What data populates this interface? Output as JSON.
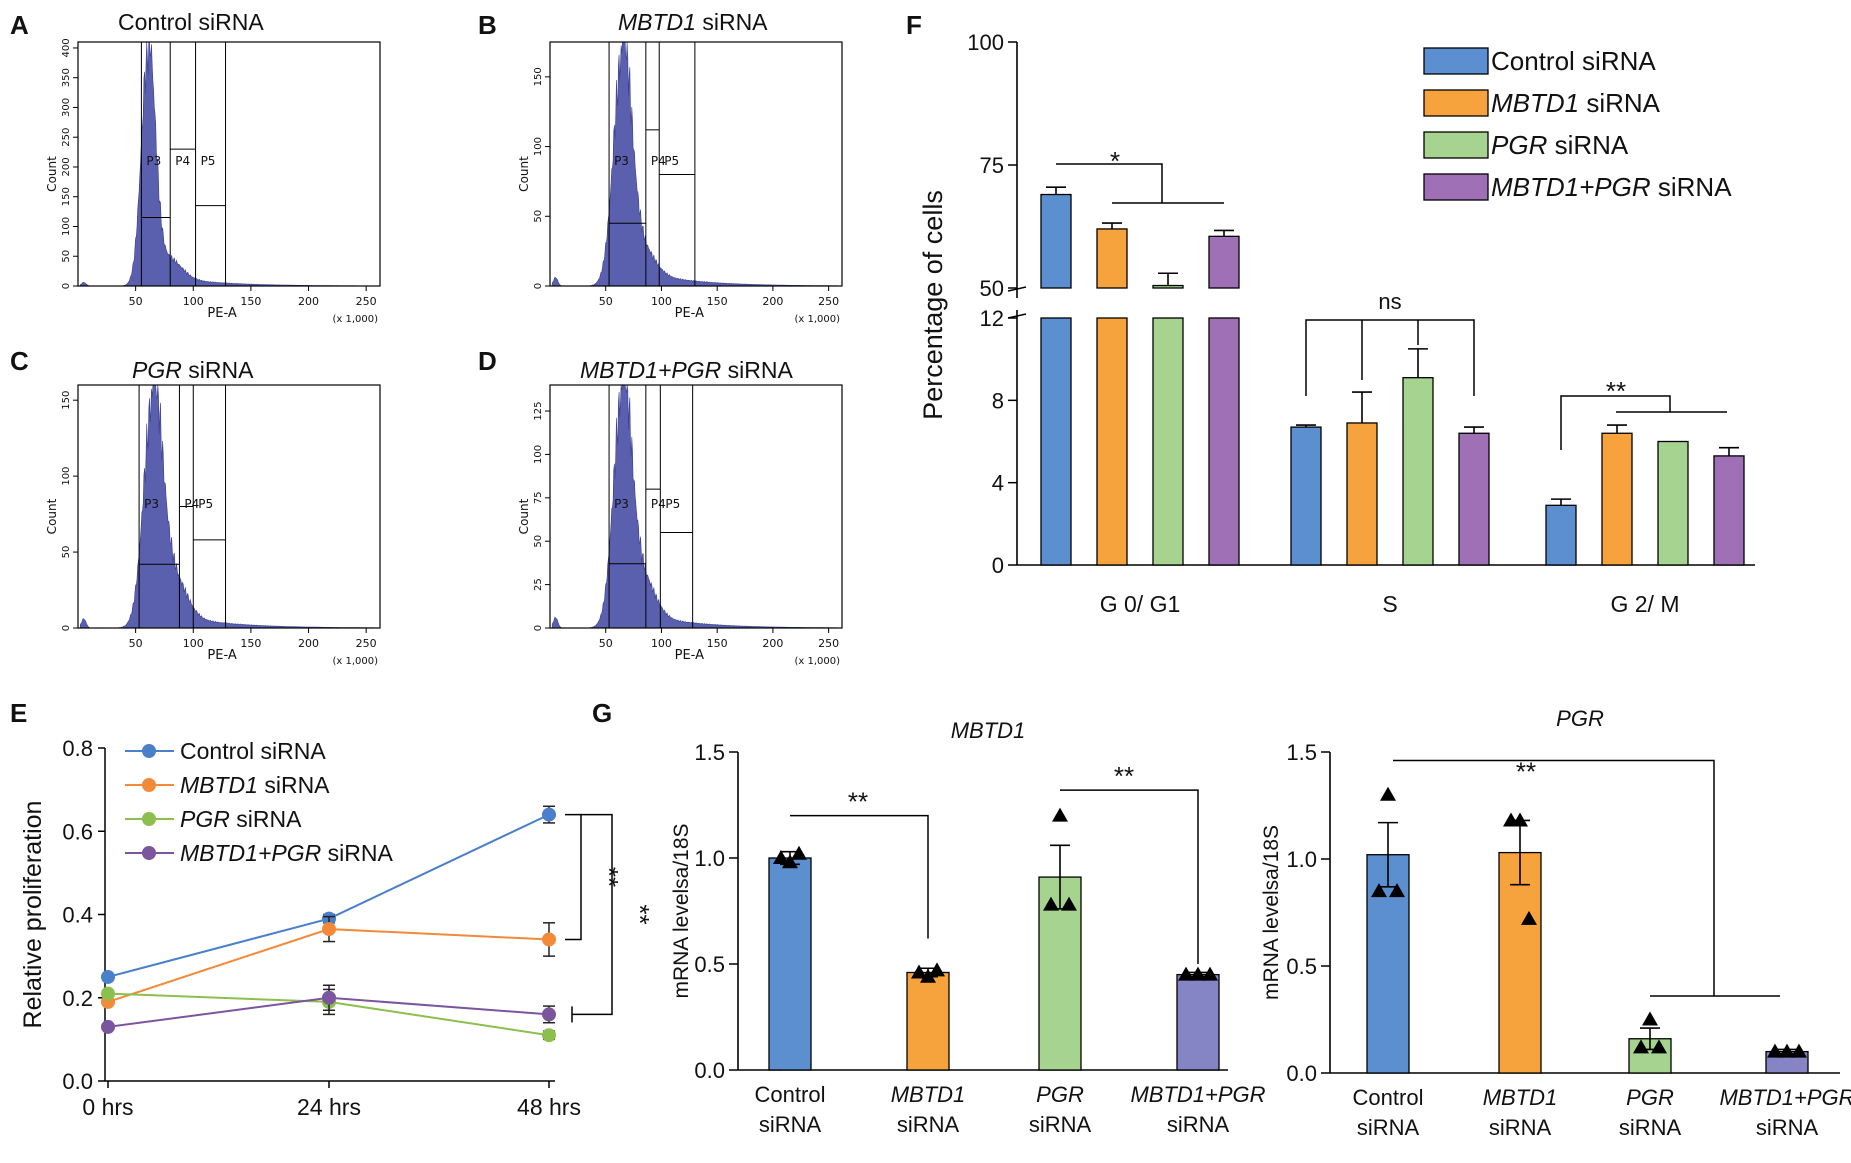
{
  "panels": {
    "A": {
      "letter": "A",
      "title": "Control siRNA"
    },
    "B": {
      "letter": "B",
      "title_italic": "MBTD1",
      "title_rest": " siRNA"
    },
    "C": {
      "letter": "C",
      "title_italic": "PGR",
      "title_rest": " siRNA"
    },
    "D": {
      "letter": "D",
      "title_italic": "MBTD1+PGR",
      "title_rest": " siRNA"
    },
    "E": {
      "letter": "E"
    },
    "F": {
      "letter": "F"
    },
    "G": {
      "letter": "G"
    }
  },
  "colors": {
    "control": "#5b8fd0",
    "mbtd1": "#f6a33e",
    "pgr": "#a6d490",
    "combo": "#a070b6",
    "combo_g": "#8584c4",
    "e_control": "#4a7fc9",
    "e_mbtd1": "#f28a3a",
    "e_pgr": "#8cbf4d",
    "e_combo": "#7b559e",
    "flow_fill": "#5a5fae"
  },
  "chart_data": [
    {
      "id": "flow-histograms",
      "type": "area",
      "xlabel": "PE-A",
      "ylabel": "Count",
      "x_unit": "(x 1,000)",
      "x_ticks": [
        50,
        100,
        150,
        200,
        250
      ],
      "gates": [
        "P3",
        "P4",
        "P5"
      ],
      "panels": [
        {
          "id": "A",
          "y_ticks": [
            0,
            50,
            100,
            150,
            200,
            250,
            300,
            350,
            400
          ],
          "ymax": 410,
          "gate_x": [
            55,
            80,
            102,
            128
          ],
          "gate_y": [
            115,
            230,
            135
          ],
          "peak": 61,
          "peak_h": 395,
          "sigma": 6,
          "shoulder": 32,
          "tail": 22
        },
        {
          "id": "B",
          "y_ticks": [
            0,
            50,
            100,
            150
          ],
          "ymax": 175,
          "gate_x": [
            53,
            86,
            98,
            130
          ],
          "gate_y": [
            45,
            112,
            80
          ],
          "peak": 65,
          "peak_h": 165,
          "sigma": 8,
          "shoulder": 18,
          "tail": 15
        },
        {
          "id": "C",
          "y_ticks": [
            0,
            50,
            100,
            150
          ],
          "ymax": 160,
          "gate_x": [
            53,
            88,
            100,
            128
          ],
          "gate_y": [
            42,
            80,
            58
          ],
          "peak": 65,
          "peak_h": 150,
          "sigma": 8,
          "shoulder": 26,
          "tail": 13
        },
        {
          "id": "D",
          "y_ticks": [
            0,
            25,
            50,
            75,
            100,
            125
          ],
          "ymax": 140,
          "gate_x": [
            53,
            86,
            99,
            128
          ],
          "gate_y": [
            37,
            80,
            55
          ],
          "peak": 65,
          "peak_h": 135,
          "sigma": 8,
          "shoulder": 22,
          "tail": 12
        }
      ]
    },
    {
      "id": "proliferation",
      "type": "line",
      "categories": [
        "0 hrs",
        "24 hrs",
        "48 hrs"
      ],
      "ylabel": "Relative proliferation",
      "ylim": [
        0,
        0.8
      ],
      "y_ticks": [
        "0.0",
        "0.2",
        "0.4",
        "0.6",
        "0.8"
      ],
      "series": [
        {
          "name": "Control siRNA",
          "italic": "",
          "rest": "Control siRNA",
          "values": [
            0.25,
            0.39,
            0.64
          ],
          "err": [
            0,
            0.01,
            0.02
          ],
          "color": "#4a7fc9"
        },
        {
          "name": "MBTD1 siRNA",
          "italic": "MBTD1",
          "rest": " siRNA",
          "values": [
            0.19,
            0.365,
            0.34
          ],
          "err": [
            0,
            0.03,
            0.04
          ],
          "color": "#f28a3a"
        },
        {
          "name": "PGR siRNA",
          "italic": "PGR",
          "rest": " siRNA",
          "values": [
            0.21,
            0.19,
            0.11
          ],
          "err": [
            0,
            0.03,
            0.01
          ],
          "color": "#8cbf4d"
        },
        {
          "name": "MBTD1+PGR siRNA",
          "italic": "MBTD1+PGR",
          "rest": " siRNA",
          "values": [
            0.13,
            0.2,
            0.16
          ],
          "err": [
            0,
            0.03,
            0.02
          ],
          "color": "#7b559e"
        }
      ],
      "significance": [
        "**",
        "**"
      ]
    },
    {
      "id": "cell-cycle",
      "type": "bar",
      "categories": [
        "G 0/ G1",
        "S",
        "G 2/ M"
      ],
      "ylabel": "Percentage of cells",
      "y_ticks_upper": [
        50,
        75,
        100
      ],
      "y_ticks_lower": [
        0,
        4,
        8,
        12
      ],
      "axis_break": [
        12,
        50
      ],
      "series": [
        {
          "name": "Control siRNA",
          "italic": "",
          "rest": "Control siRNA",
          "values": [
            69,
            6.7,
            2.9
          ],
          "err": [
            1.5,
            0.1,
            0.3
          ],
          "color": "#5b8fd0"
        },
        {
          "name": "MBTD1 siRNA",
          "italic": "MBTD1",
          "rest": " siRNA",
          "values": [
            62,
            6.9,
            6.4
          ],
          "err": [
            1.2,
            1.5,
            0.4
          ],
          "color": "#f6a33e"
        },
        {
          "name": "PGR siRNA",
          "italic": "PGR",
          "rest": " siRNA",
          "values": [
            50.5,
            9.1,
            6.0
          ],
          "err": [
            2.5,
            1.4,
            0
          ],
          "color": "#a6d490"
        },
        {
          "name": "MBTD1+PGR siRNA",
          "italic": "MBTD1+PGR",
          "rest": " siRNA",
          "values": [
            60.5,
            6.4,
            5.3
          ],
          "err": [
            1.2,
            0.3,
            0.4
          ],
          "color": "#a070b6"
        }
      ],
      "significance": [
        "*",
        "ns",
        "**"
      ]
    },
    {
      "id": "qpcr-mbtd1",
      "type": "bar",
      "title": "MBTD1",
      "ylabel": "mRNA levelsa/18S",
      "ylim": [
        0,
        1.5
      ],
      "y_ticks": [
        "0.0",
        "0.5",
        "1.0",
        "1.5"
      ],
      "categories": [
        {
          "line1_italic": "",
          "line1": "Control",
          "line2": "siRNA"
        },
        {
          "line1_italic": "MBTD1",
          "line1": "",
          "line2": "siRNA"
        },
        {
          "line1_italic": "PGR",
          "line1": "",
          "line2": "siRNA"
        },
        {
          "line1_italic": "MBTD1+PGR",
          "line1": "",
          "line2": "siRNA"
        }
      ],
      "values": [
        1.0,
        0.46,
        0.91,
        0.45
      ],
      "err": [
        0.03,
        0.02,
        0.15,
        0.01
      ],
      "points": [
        [
          0.98,
          1.0,
          1.02
        ],
        [
          0.44,
          0.46,
          0.47
        ],
        [
          1.2,
          0.78,
          0.78
        ],
        [
          0.45,
          0.45,
          0.45
        ]
      ],
      "colors": [
        "#5b8fd0",
        "#f6a33e",
        "#a6d490",
        "#8584c4"
      ],
      "significance": [
        "**",
        "**"
      ]
    },
    {
      "id": "qpcr-pgr",
      "type": "bar",
      "title": "PGR",
      "ylabel": "mRNA levelsa/18S",
      "ylim": [
        0,
        1.5
      ],
      "y_ticks": [
        "0.0",
        "0.5",
        "1.0",
        "1.5"
      ],
      "categories": [
        {
          "line1_italic": "",
          "line1": "Control",
          "line2": "siRNA"
        },
        {
          "line1_italic": "MBTD1",
          "line1": "",
          "line2": "siRNA"
        },
        {
          "line1_italic": "PGR",
          "line1": "",
          "line2": "siRNA"
        },
        {
          "line1_italic": "MBTD1+PGR",
          "line1": "",
          "line2": "siRNA"
        }
      ],
      "values": [
        1.02,
        1.03,
        0.16,
        0.1
      ],
      "err": [
        0.15,
        0.15,
        0.05,
        0.01
      ],
      "points": [
        [
          1.3,
          0.85,
          0.85
        ],
        [
          1.18,
          1.18,
          0.72
        ],
        [
          0.25,
          0.12,
          0.12
        ],
        [
          0.1,
          0.1,
          0.1
        ]
      ],
      "colors": [
        "#5b8fd0",
        "#f6a33e",
        "#a6d490",
        "#8584c4"
      ],
      "significance": [
        "**"
      ]
    }
  ]
}
